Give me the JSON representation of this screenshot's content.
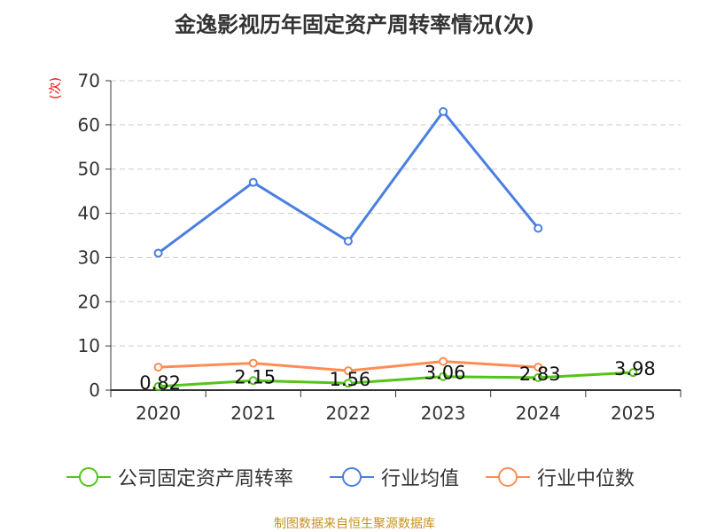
{
  "chart_data": {
    "type": "line",
    "title": "金逸影视历年固定资产周转率情况(次)",
    "ylabel": "(次)",
    "categories": [
      "2020",
      "2021",
      "2022",
      "2023",
      "2024",
      "2025"
    ],
    "ylim": [
      0,
      70
    ],
    "yticks": [
      0,
      10,
      20,
      30,
      40,
      50,
      60,
      70
    ],
    "grid": true,
    "legend": "bottom",
    "series": [
      {
        "name": "公司固定资产周转率",
        "color": "#52c41a",
        "values": [
          0.82,
          2.15,
          1.56,
          3.06,
          2.83,
          3.98
        ],
        "labels": [
          "0.82",
          "2.15",
          "1.56",
          "3.06",
          "2.83",
          "3.98"
        ]
      },
      {
        "name": "行业均值",
        "color": "#4a7fe0",
        "values": [
          31.0,
          47.0,
          33.7,
          63.0,
          36.6,
          null
        ]
      },
      {
        "name": "行业中位数",
        "color": "#ff8c55",
        "values": [
          5.2,
          6.1,
          4.4,
          6.5,
          5.2,
          null
        ]
      }
    ]
  },
  "source": "制图数据来自恒生聚源数据库"
}
